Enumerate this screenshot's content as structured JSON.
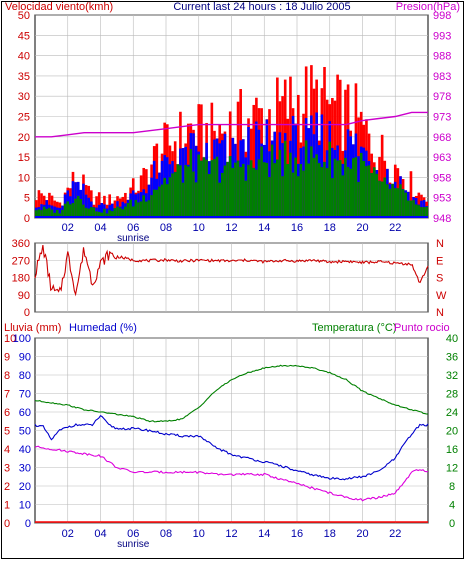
{
  "colors": {
    "wind_speed": "#ff0000",
    "wind_gust_mix": "#0000ff",
    "wind_avg": "#008000",
    "pressure": "#cc00cc",
    "wind_dir": "#cc0000",
    "rain": "#ff0000",
    "humidity": "#0000cc",
    "temperature": "#008000",
    "dewpoint": "#dd00dd",
    "grid": "#bbbbbb"
  },
  "chart_data": [
    {
      "type": "bar",
      "title": "Current last 24 hours : 18 Julio 2005",
      "ylabel": "Velocidad viento(kmh)",
      "ylabel_right": "Presion(hPa)",
      "ylim": [
        0,
        50
      ],
      "yticks": [
        0,
        5,
        10,
        15,
        20,
        25,
        30,
        35,
        40,
        45,
        50
      ],
      "ylim_right": [
        948,
        998
      ],
      "yticks_right": [
        948,
        953,
        958,
        963,
        968,
        973,
        978,
        983,
        988,
        993,
        998
      ],
      "xlim": [
        0,
        24
      ],
      "xticks": [
        "02",
        "04",
        "06",
        "08",
        "10",
        "12",
        "14",
        "16",
        "18",
        "20",
        "22"
      ],
      "x_annotation": "sunrise",
      "grid": true,
      "series": [
        {
          "name": "wind_max",
          "hours": [
            0.5,
            1.5,
            2.5,
            3.5,
            4.5,
            5.5,
            6.5,
            7.5,
            8.5,
            9.5,
            10.5,
            11.5,
            12.5,
            13.5,
            14.5,
            15.5,
            16.5,
            17.5,
            18.5,
            19.5,
            20.5,
            21.5,
            22.5,
            23.5
          ],
          "values": [
            8,
            5,
            14,
            7,
            6,
            8,
            12,
            22,
            26,
            30,
            28,
            30,
            32,
            34,
            35,
            38,
            40,
            39,
            36,
            34,
            26,
            20,
            15,
            8
          ]
        },
        {
          "name": "wind_gust",
          "hours": [
            0.5,
            1.5,
            2.5,
            3.5,
            4.5,
            5.5,
            6.5,
            7.5,
            8.5,
            9.5,
            10.5,
            11.5,
            12.5,
            13.5,
            14.5,
            15.5,
            16.5,
            17.5,
            18.5,
            19.5,
            20.5,
            21.5,
            22.5,
            23.5
          ],
          "values": [
            5,
            3,
            12,
            5,
            4,
            6,
            9,
            16,
            20,
            22,
            22,
            23,
            24,
            24,
            25,
            26,
            26,
            27,
            25,
            24,
            20,
            15,
            11,
            5
          ]
        },
        {
          "name": "wind_avg",
          "hours": [
            0.5,
            1.5,
            2.5,
            3.5,
            4.5,
            5.5,
            6.5,
            7.5,
            8.5,
            9.5,
            10.5,
            11.5,
            12.5,
            13.5,
            14.5,
            15.5,
            16.5,
            17.5,
            18.5,
            19.5,
            20.5,
            21.5,
            22.5,
            23.5
          ],
          "values": [
            3,
            2,
            8,
            3,
            2,
            4,
            6,
            11,
            14,
            17,
            16,
            17,
            18,
            18,
            19,
            20,
            20,
            20,
            19,
            18,
            15,
            11,
            8,
            3
          ]
        },
        {
          "name": "pressure",
          "hours": [
            0,
            1,
            2,
            3,
            4,
            5,
            6,
            7,
            8,
            9,
            10,
            11,
            12,
            13,
            14,
            15,
            16,
            17,
            18,
            19,
            20,
            21,
            22,
            23,
            24
          ],
          "values": [
            968,
            968,
            968.5,
            969,
            969,
            969,
            969,
            969.5,
            970,
            970.5,
            971,
            971,
            971,
            971,
            971,
            971,
            971,
            971,
            971,
            971,
            972,
            972.5,
            973,
            974,
            974
          ]
        }
      ]
    },
    {
      "type": "line",
      "ylabel_left_ticks": [
        0,
        90,
        180,
        270,
        360
      ],
      "ylabel_right_ticks": [
        "N",
        "W",
        "S",
        "E",
        "N"
      ],
      "ylim": [
        0,
        360
      ],
      "xlim": [
        0,
        24
      ],
      "series": [
        {
          "name": "wind_direction",
          "x": [
            0,
            0.5,
            1,
            1.5,
            2,
            2.5,
            3,
            3.5,
            4,
            4.5,
            5,
            6,
            7,
            8,
            9,
            10,
            11,
            12,
            13,
            14,
            15,
            16,
            17,
            18,
            19,
            20,
            21,
            22,
            23,
            23.5,
            24
          ],
          "y": [
            200,
            340,
            120,
            90,
            300,
            100,
            330,
            150,
            250,
            300,
            290,
            270,
            268,
            272,
            265,
            270,
            268,
            266,
            270,
            262,
            268,
            266,
            270,
            260,
            265,
            258,
            262,
            255,
            250,
            150,
            240
          ]
        }
      ]
    },
    {
      "type": "line",
      "ylabel_rain": "Lluvia (mm)",
      "ylabel_humidity": "Humedad (%)",
      "ylabel_right": "Temperatura (°C)",
      "ylabel_right2": "Punto rocio",
      "rain_ticks": [
        0,
        1,
        2,
        3,
        4,
        5,
        6,
        7,
        8,
        9,
        10
      ],
      "humidity_ticks": [
        0,
        10,
        20,
        30,
        40,
        50,
        60,
        70,
        80,
        90,
        100
      ],
      "temp_ticks": [
        0,
        4,
        8,
        12,
        16,
        20,
        24,
        28,
        32,
        36,
        40
      ],
      "ylim_temp": [
        0,
        40
      ],
      "xlim": [
        0,
        24
      ],
      "series": [
        {
          "name": "rain",
          "x": [
            0,
            24
          ],
          "y": [
            0,
            0
          ]
        },
        {
          "name": "humidity",
          "x": [
            0,
            0.5,
            1,
            1.5,
            2,
            2.5,
            3,
            3.5,
            4,
            4.5,
            5,
            6,
            7,
            8,
            9,
            10,
            11,
            12,
            13,
            14,
            15,
            16,
            17,
            18,
            19,
            20,
            21,
            22,
            22.5,
            23,
            23.5,
            24
          ],
          "y": [
            53,
            52,
            45,
            50,
            52,
            53,
            53,
            53,
            58,
            53,
            51,
            51,
            50,
            48,
            47,
            47,
            41,
            37,
            35,
            33,
            31,
            28,
            26,
            24,
            24,
            25,
            28,
            35,
            42,
            48,
            53,
            53
          ]
        },
        {
          "name": "temperature",
          "x": [
            0,
            1,
            2,
            3,
            4,
            5,
            6,
            7,
            8,
            9,
            10,
            11,
            12,
            13,
            14,
            15,
            16,
            17,
            18,
            19,
            20,
            21,
            22,
            23,
            24
          ],
          "y": [
            26.5,
            26,
            25.5,
            24.5,
            24,
            23.5,
            23,
            22,
            22,
            22.5,
            25,
            28.5,
            31,
            32.5,
            33.5,
            34,
            34,
            33.5,
            32.5,
            31,
            28.5,
            27,
            25.5,
            24.5,
            23.5
          ]
        },
        {
          "name": "dewpoint",
          "x": [
            0,
            1,
            2,
            3,
            4,
            5,
            6,
            7,
            8,
            9,
            10,
            11,
            12,
            13,
            14,
            15,
            16,
            17,
            18,
            19,
            20,
            21,
            22,
            22.5,
            23,
            23.5,
            24
          ],
          "y": [
            16.5,
            16,
            15.5,
            15,
            14.5,
            12,
            11,
            11,
            11,
            11,
            11,
            10.5,
            10.5,
            10.5,
            10.5,
            9.5,
            8.5,
            7.5,
            6.5,
            5.5,
            5,
            5.5,
            6.5,
            8.5,
            11,
            11.5,
            11
          ]
        }
      ]
    }
  ]
}
